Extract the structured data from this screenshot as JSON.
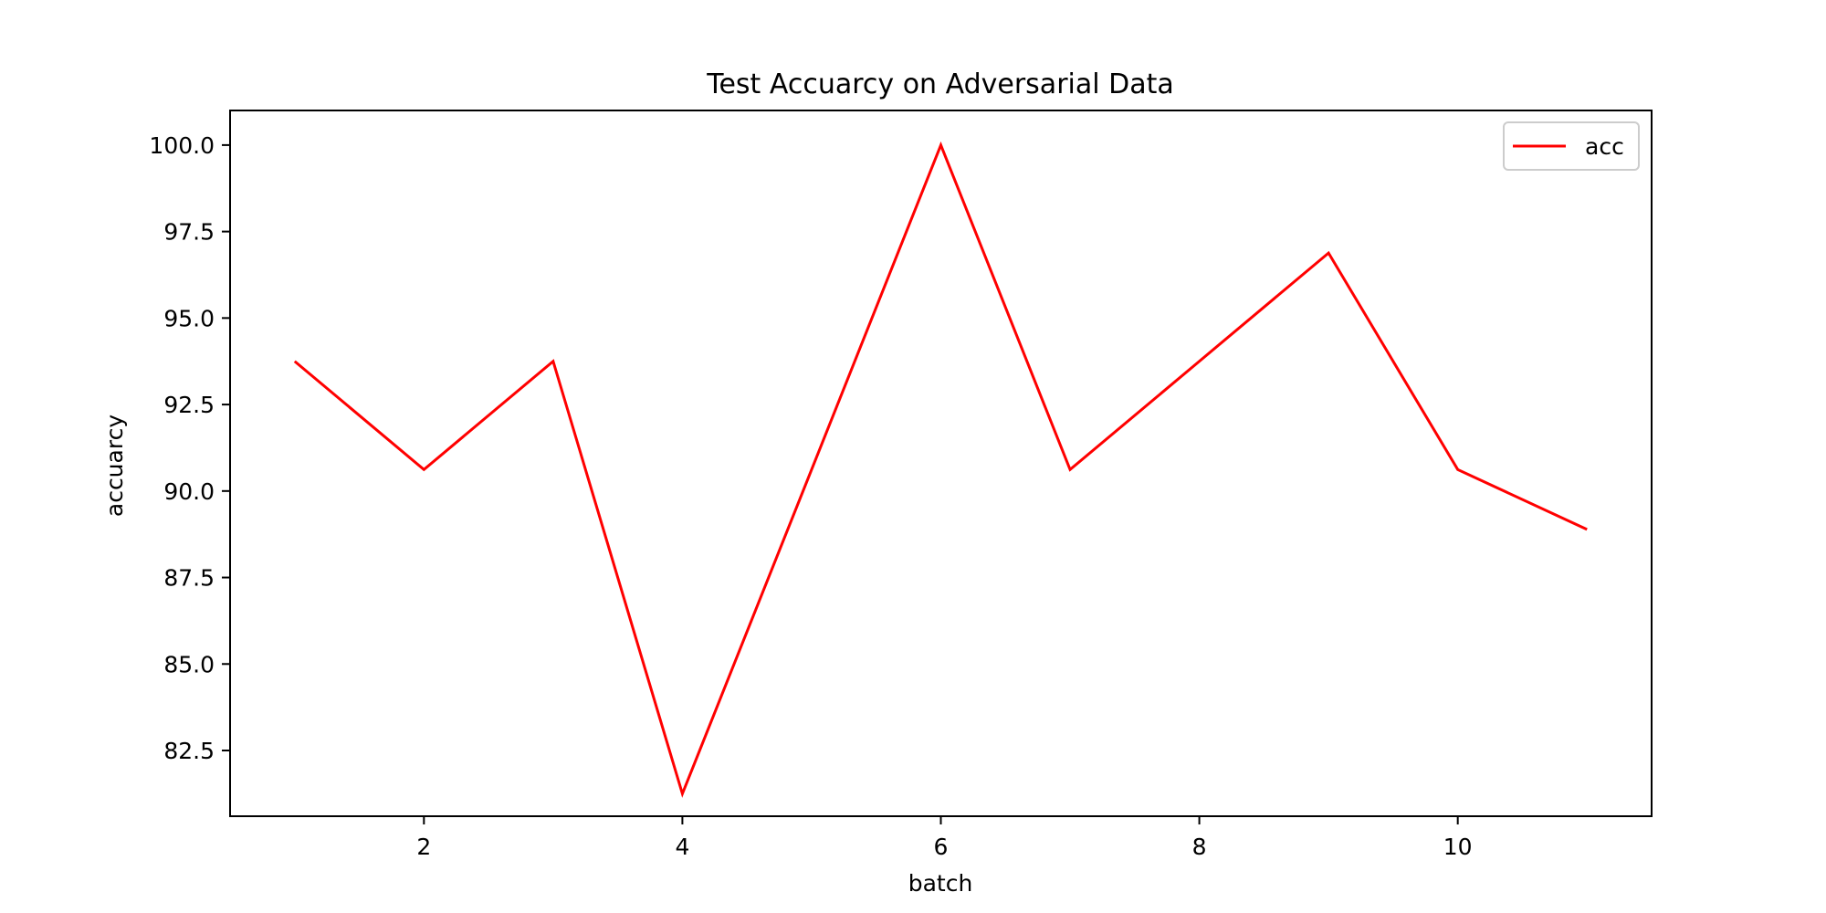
{
  "chart_data": {
    "type": "line",
    "title": "Test Accuarcy on Adversarial Data",
    "xlabel": "batch",
    "ylabel": "accuarcy",
    "xlim": [
      0.5,
      11.5
    ],
    "ylim": [
      80.6,
      101.0
    ],
    "xticks": [
      2,
      4,
      6,
      8,
      10
    ],
    "yticks": [
      82.5,
      85.0,
      87.5,
      90.0,
      92.5,
      95.0,
      97.5,
      100.0
    ],
    "x": [
      1,
      2,
      3,
      4,
      5,
      6,
      7,
      8,
      9,
      10,
      11
    ],
    "series": [
      {
        "name": "acc",
        "color": "#ff0000",
        "values": [
          93.75,
          90.62,
          93.75,
          81.25,
          90.62,
          100.0,
          90.62,
          93.75,
          96.88,
          90.62,
          88.89
        ]
      }
    ],
    "legend": "upper right",
    "grid": false
  }
}
